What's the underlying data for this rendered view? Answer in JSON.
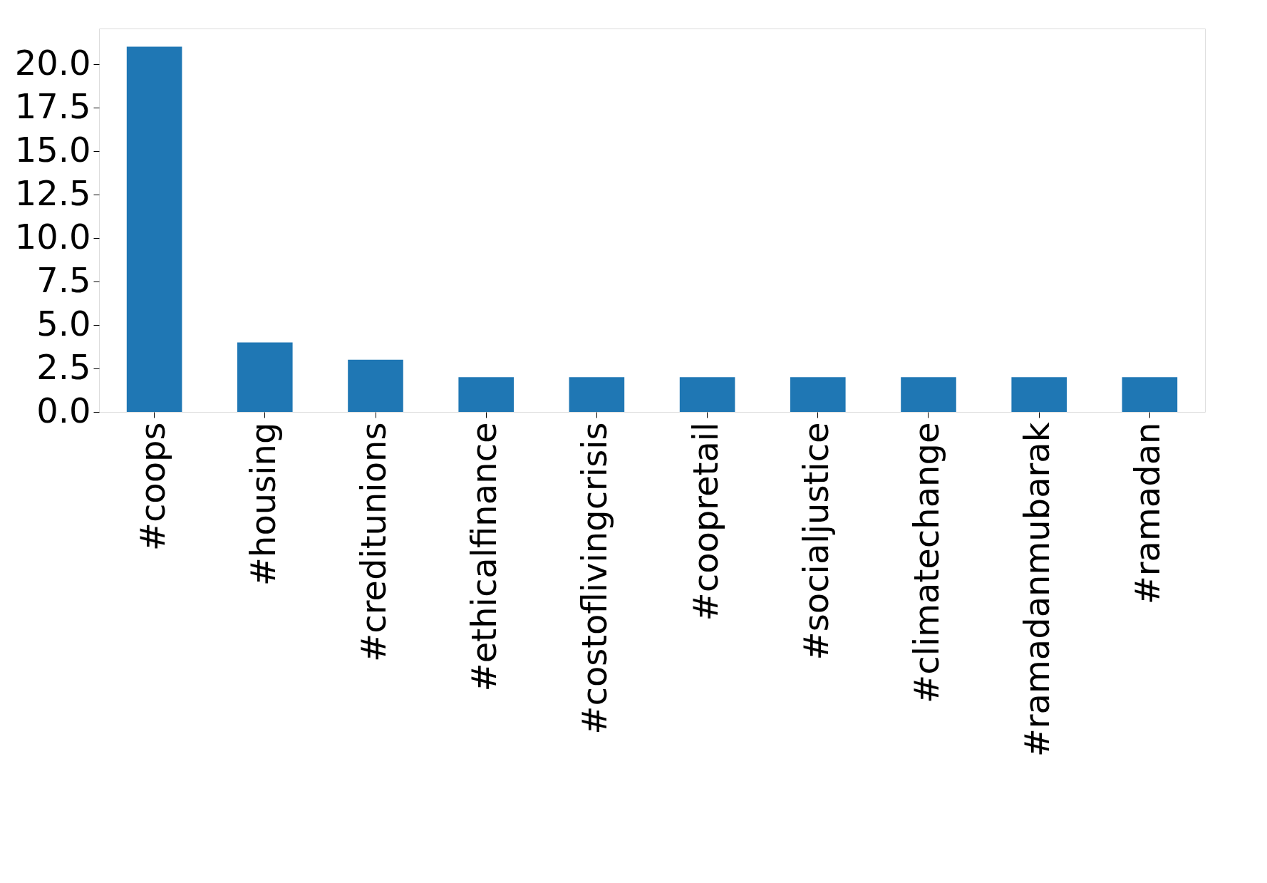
{
  "chart_data": {
    "type": "bar",
    "categories": [
      "#coops",
      "#housing",
      "#creditunions",
      "#ethicalfinance",
      "#costoflivingcrisis",
      "#coopretail",
      "#socialjustice",
      "#climatechange",
      "#ramadanmubarak",
      "#ramadan"
    ],
    "values": [
      21,
      4,
      3,
      2,
      2,
      2,
      2,
      2,
      2,
      2
    ],
    "color": "#1f77b4",
    "ylim": [
      0,
      22.05
    ],
    "yticks": [
      {
        "value": 0,
        "label": "0.0"
      },
      {
        "value": 2.5,
        "label": "2.5"
      },
      {
        "value": 5,
        "label": "5.0"
      },
      {
        "value": 7.5,
        "label": "7.5"
      },
      {
        "value": 10,
        "label": "10.0"
      },
      {
        "value": 12.5,
        "label": "12.5"
      },
      {
        "value": 15,
        "label": "15.0"
      },
      {
        "value": 17.5,
        "label": "17.5"
      },
      {
        "value": 20,
        "label": "20.0"
      }
    ],
    "grid": false
  }
}
